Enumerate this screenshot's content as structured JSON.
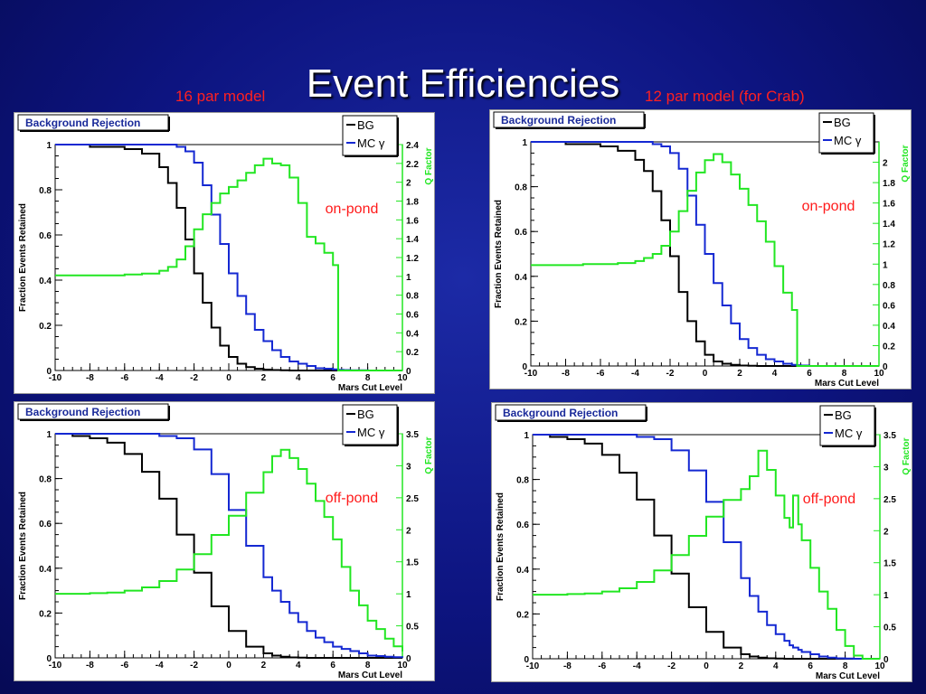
{
  "slide": {
    "title": "Event Efficiencies",
    "left_label": "16 par model",
    "right_label": "12 par model (for Crab)"
  },
  "colors": {
    "bg": "#000000",
    "mc": "#1428d2",
    "q": "#22e622",
    "label": "#ff1a1a"
  },
  "chart_data": [
    {
      "type": "line",
      "panel_title": "Background Rejection",
      "annotation": "on-pond",
      "xlabel": "Mars Cut Level",
      "ylabel": "Fraction Events Retained",
      "y2label": "Q Factor",
      "xlim": [
        -10,
        10
      ],
      "ylim": [
        0,
        1
      ],
      "y2lim": [
        0,
        2.4
      ],
      "xticks": [
        -10,
        -8,
        -6,
        -4,
        -2,
        0,
        2,
        4,
        6,
        8,
        10
      ],
      "yticks": [
        0,
        0.2,
        0.4,
        0.6,
        0.8,
        1
      ],
      "y2ticks": [
        0,
        0.2,
        0.4,
        0.6,
        0.8,
        1,
        1.2,
        1.4,
        1.6,
        1.8,
        2,
        2.2,
        2.4
      ],
      "legend": [
        "BG",
        "MC γ"
      ],
      "x": [
        -10,
        -9,
        -8,
        -7,
        -6,
        -5,
        -4,
        -3.5,
        -3,
        -2.5,
        -2,
        -1.5,
        -1,
        -0.5,
        0,
        0.5,
        1,
        1.5,
        2,
        2.5,
        3,
        3.5,
        4,
        4.5,
        5,
        5.5,
        6,
        6.3,
        6.6,
        7,
        8,
        9,
        10
      ],
      "series": [
        {
          "name": "BG",
          "axis": "left",
          "values": [
            1,
            1,
            0.99,
            0.99,
            0.98,
            0.96,
            0.9,
            0.83,
            0.72,
            0.58,
            0.43,
            0.3,
            0.19,
            0.11,
            0.06,
            0.03,
            0.015,
            0.008,
            0.004,
            0.002,
            0.001,
            0,
            0,
            0,
            0,
            0,
            0,
            0,
            0,
            0,
            0,
            0,
            0
          ]
        },
        {
          "name": "MC γ",
          "axis": "left",
          "values": [
            1,
            1,
            1,
            1,
            1,
            1,
            1,
            1,
            0.99,
            0.97,
            0.92,
            0.82,
            0.69,
            0.56,
            0.43,
            0.33,
            0.25,
            0.18,
            0.13,
            0.09,
            0.06,
            0.04,
            0.03,
            0.02,
            0.01,
            0.008,
            0.005,
            0.003,
            0.002,
            0.001,
            0,
            0,
            0
          ]
        },
        {
          "name": "Q Factor",
          "axis": "right",
          "values": [
            1.01,
            1.01,
            1.01,
            1.01,
            1.02,
            1.03,
            1.06,
            1.1,
            1.18,
            1.32,
            1.5,
            1.66,
            1.78,
            1.88,
            1.95,
            2.02,
            2.1,
            2.18,
            2.25,
            2.2,
            2.18,
            2.05,
            1.78,
            1.42,
            1.35,
            1.25,
            1.12,
            0,
            0,
            0,
            0,
            0,
            0
          ]
        }
      ]
    },
    {
      "type": "line",
      "panel_title": "Background Rejection",
      "annotation": "on-pond",
      "xlabel": "Mars Cut Level",
      "ylabel": "Fraction Events Retained",
      "y2label": "Q Factor",
      "xlim": [
        -10,
        10
      ],
      "ylim": [
        0,
        1
      ],
      "y2lim": [
        0,
        2.2
      ],
      "xticks": [
        -10,
        -8,
        -6,
        -4,
        -2,
        0,
        2,
        4,
        6,
        8,
        10
      ],
      "yticks": [
        0,
        0.2,
        0.4,
        0.6,
        0.8,
        1
      ],
      "y2ticks": [
        0,
        0.2,
        0.4,
        0.6,
        0.8,
        1,
        1.2,
        1.4,
        1.6,
        1.8,
        2
      ],
      "legend": [
        "BG",
        "MC γ"
      ],
      "x": [
        -10,
        -9,
        -8,
        -7,
        -6,
        -5,
        -4,
        -3.5,
        -3,
        -2.5,
        -2,
        -1.5,
        -1,
        -0.5,
        0,
        0.5,
        1,
        1.5,
        2,
        2.5,
        3,
        3.5,
        4,
        4.5,
        5,
        5.3,
        5.5,
        6,
        7,
        8,
        9,
        10
      ],
      "series": [
        {
          "name": "BG",
          "axis": "left",
          "values": [
            1,
            1,
            0.99,
            0.99,
            0.98,
            0.96,
            0.92,
            0.87,
            0.78,
            0.65,
            0.49,
            0.33,
            0.2,
            0.11,
            0.05,
            0.02,
            0.01,
            0.005,
            0.002,
            0.001,
            0,
            0,
            0,
            0,
            0,
            0,
            0,
            0,
            0,
            0,
            0,
            0
          ]
        },
        {
          "name": "MC γ",
          "axis": "left",
          "values": [
            1,
            1,
            1,
            1,
            1,
            1,
            1,
            1,
            0.99,
            0.98,
            0.95,
            0.88,
            0.76,
            0.63,
            0.5,
            0.37,
            0.27,
            0.19,
            0.12,
            0.08,
            0.05,
            0.03,
            0.02,
            0.01,
            0.005,
            0.003,
            0.002,
            0,
            0,
            0,
            0,
            0
          ]
        },
        {
          "name": "Q Factor",
          "axis": "right",
          "values": [
            0.99,
            0.99,
            0.99,
            1.0,
            1.0,
            1.01,
            1.03,
            1.06,
            1.1,
            1.18,
            1.32,
            1.52,
            1.72,
            1.9,
            2.02,
            2.08,
            2.0,
            1.88,
            1.74,
            1.58,
            1.42,
            1.22,
            0.98,
            0.72,
            0.55,
            0,
            0,
            0,
            0,
            0,
            0,
            0
          ]
        }
      ]
    },
    {
      "type": "line",
      "panel_title": "Background Rejection",
      "annotation": "off-pond",
      "xlabel": "Mars Cut Level",
      "ylabel": "Fraction Events Retained",
      "y2label": "Q Factor",
      "xlim": [
        -10,
        10
      ],
      "ylim": [
        0,
        1
      ],
      "y2lim": [
        0,
        3.5
      ],
      "xticks": [
        -10,
        -8,
        -6,
        -4,
        -2,
        0,
        2,
        4,
        6,
        8,
        10
      ],
      "yticks": [
        0,
        0.2,
        0.4,
        0.6,
        0.8,
        1
      ],
      "y2ticks": [
        0,
        0.5,
        1,
        1.5,
        2,
        2.5,
        3,
        3.5
      ],
      "legend": [
        "BG",
        "MC γ"
      ],
      "x": [
        -10,
        -9,
        -8,
        -7,
        -6,
        -5,
        -4,
        -3,
        -2,
        -1,
        0,
        1,
        2,
        2.5,
        3,
        3.5,
        4,
        4.5,
        5,
        5.5,
        6,
        6.5,
        7,
        7.5,
        8,
        8.5,
        9,
        9.5,
        10
      ],
      "series": [
        {
          "name": "BG",
          "axis": "left",
          "values": [
            1,
            0.99,
            0.98,
            0.96,
            0.91,
            0.83,
            0.71,
            0.55,
            0.38,
            0.23,
            0.12,
            0.05,
            0.02,
            0.01,
            0.005,
            0.002,
            0.001,
            0,
            0,
            0,
            0,
            0,
            0,
            0,
            0,
            0,
            0,
            0,
            0
          ]
        },
        {
          "name": "MC γ",
          "axis": "left",
          "values": [
            1,
            1,
            1,
            1,
            1,
            1,
            0.99,
            0.98,
            0.93,
            0.82,
            0.66,
            0.5,
            0.36,
            0.3,
            0.25,
            0.2,
            0.16,
            0.12,
            0.09,
            0.07,
            0.05,
            0.04,
            0.03,
            0.02,
            0.01,
            0.008,
            0.005,
            0.003,
            0.001
          ]
        },
        {
          "name": "Q Factor",
          "axis": "right",
          "values": [
            1.0,
            1.0,
            1.01,
            1.02,
            1.05,
            1.1,
            1.2,
            1.38,
            1.62,
            1.92,
            2.22,
            2.58,
            2.9,
            3.15,
            3.25,
            3.12,
            2.95,
            2.72,
            2.45,
            2.2,
            1.85,
            1.42,
            1.05,
            0.82,
            0.58,
            0.45,
            0.3,
            0.18,
            0.1
          ]
        }
      ]
    },
    {
      "type": "line",
      "panel_title": "Background Rejection",
      "annotation": "off-pond",
      "xlabel": "Mars Cut Level",
      "ylabel": "Fraction Events Retained",
      "y2label": "Q Factor",
      "xlim": [
        -10,
        10
      ],
      "ylim": [
        0,
        1
      ],
      "y2lim": [
        0,
        3.5
      ],
      "xticks": [
        -10,
        -8,
        -6,
        -4,
        -2,
        0,
        2,
        4,
        6,
        8,
        10
      ],
      "yticks": [
        0,
        0.2,
        0.4,
        0.6,
        0.8,
        1
      ],
      "y2ticks": [
        0,
        0.5,
        1,
        1.5,
        2,
        2.5,
        3,
        3.5
      ],
      "legend": [
        "BG",
        "MC γ"
      ],
      "x": [
        -10,
        -9,
        -8,
        -7,
        -6,
        -5,
        -4,
        -3,
        -2,
        -1,
        0,
        1,
        2,
        2.5,
        3,
        3.5,
        4,
        4.5,
        4.8,
        5,
        5.3,
        5.5,
        6,
        6.5,
        7,
        7.5,
        8,
        8.5,
        9,
        10
      ],
      "series": [
        {
          "name": "BG",
          "axis": "left",
          "values": [
            1,
            0.99,
            0.98,
            0.96,
            0.91,
            0.83,
            0.71,
            0.55,
            0.38,
            0.23,
            0.12,
            0.05,
            0.02,
            0.01,
            0.005,
            0.002,
            0.001,
            0,
            0,
            0,
            0,
            0,
            0,
            0,
            0,
            0,
            0,
            0,
            0,
            0
          ]
        },
        {
          "name": "MC γ",
          "axis": "left",
          "values": [
            1,
            1,
            1,
            1,
            1,
            1,
            0.99,
            0.98,
            0.93,
            0.84,
            0.7,
            0.52,
            0.36,
            0.28,
            0.21,
            0.15,
            0.11,
            0.08,
            0.06,
            0.05,
            0.04,
            0.03,
            0.02,
            0.01,
            0.005,
            0.002,
            0.001,
            0,
            0,
            0
          ]
        },
        {
          "name": "Q Factor",
          "axis": "right",
          "values": [
            1.0,
            1.0,
            1.01,
            1.02,
            1.05,
            1.1,
            1.2,
            1.38,
            1.62,
            1.92,
            2.22,
            2.48,
            2.65,
            2.85,
            3.25,
            2.95,
            2.55,
            2.2,
            2.05,
            2.55,
            2.1,
            1.85,
            1.42,
            1.05,
            0.78,
            0.45,
            0.2,
            0.05,
            0,
            0
          ]
        }
      ]
    }
  ]
}
